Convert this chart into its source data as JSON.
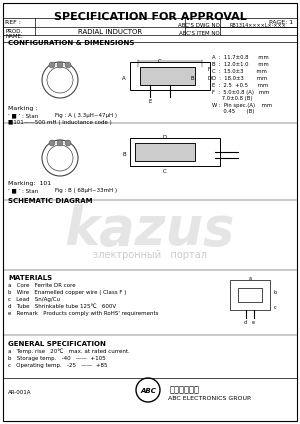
{
  "title": "SPECIFICATION FOR APPROVAL",
  "page": "PAGE: 1",
  "ref": "REF :",
  "prod": "PROD.",
  "name_label": "NAME:",
  "product_name": "RADIAL INDUCTOR",
  "abcs_dwg": "ABC'S DWG NO.",
  "abcs_item": "ABC'S ITEM NO.",
  "dwg_number": "RB1314××××L×-×××",
  "config_title": "CONFIGURATION & DIMENSIONS",
  "dim_a": "A  :  11.7±0.8      mm",
  "dim_b": "B  :  12.0±1.0      mm",
  "dim_c": "C  :  15.0±3        mm",
  "dim_d": "D  :  18.0±3        mm",
  "dim_e": "E  :  2.5  +0.5      mm",
  "dim_f": "F  :  5.0±0.8 (A)   mm\n      7.0±0.8 (B)",
  "dim_w": "W :  Pin spec.(A)    mm\n       0.45       (B)",
  "marking_title": "Marking :",
  "marking_star": "’ ■ ’ : Stan",
  "marking_fig_a": "Fig : A ( 3.3μH~47μH )",
  "marking_101": "■101——500 mH ( Inductance code )",
  "marking2_101": "Marking:  101",
  "marking2_star": "’ ■ ’ : Stan",
  "marking2_fig_b": "Fig : B ( 68μH~33mH )",
  "schematic_title": "SCHEMATIC DIAGRAM",
  "materials_title": "MATERIALS",
  "mat_a": "a   Core   Ferrite DR core",
  "mat_b": "b   Wire   Enamelled copper wire ( Class F )",
  "mat_c": "c   Lead   Sn/Ag/Cu",
  "mat_d": "d   Tube   Shrinkable tube 125℃   600V",
  "mat_e": "e   Remark   Products comply with RoHS' requirements",
  "general_title": "GENERAL SPECIFICATION",
  "gen_a": "a   Temp. rise   20℃   max. at rated current.",
  "gen_b": "b   Storage temp.   -40   ——  +105",
  "gen_c": "c   Operating temp.   -25   ——  +85",
  "footer_left": "AR-001A",
  "footer_chinese": "千如電子集團",
  "footer_eng": "ABC ELECTRONICS GROUP.",
  "bg_color": "#ffffff",
  "border_color": "#000000",
  "text_color": "#000000",
  "watermark_color": "#d0d0d0"
}
